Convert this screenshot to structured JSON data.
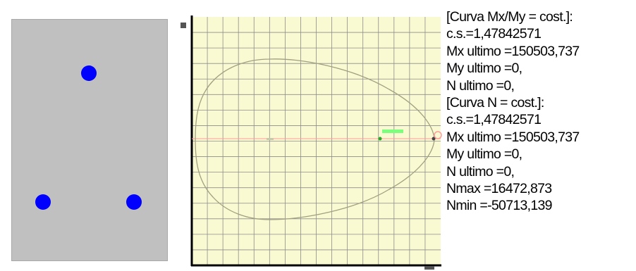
{
  "section": {
    "background": "#c0c0c0",
    "bar_color": "#0000ff",
    "bars": [
      {
        "name": "top"
      },
      {
        "name": "bottom-left"
      },
      {
        "name": "bottom-right"
      }
    ]
  },
  "chart_data": {
    "type": "line",
    "background": "#fafad2",
    "grid": true,
    "grid_color": "#8c8c8c",
    "curve_color": "#a0a082",
    "axis_line_color": "#ff9a9a",
    "current_point_color": "#22aa22",
    "ultimate_point_color": "#444444",
    "ylabel": "",
    "xlabel": ""
  },
  "results": {
    "lines": [
      "[Curva Mx/My = cost.]:",
      "c.s.=1,47842571",
      "Mx ultimo =150503,737",
      "My ultimo =0,",
      "N  ultimo =0,",
      "[Curva N = cost.]:",
      "c.s.=1,47842571",
      "Mx ultimo =150503,737",
      "My ultimo =0,",
      "N  ultimo =0,",
      "Nmax =16472,873",
      "Nmin =-50713,139"
    ]
  }
}
